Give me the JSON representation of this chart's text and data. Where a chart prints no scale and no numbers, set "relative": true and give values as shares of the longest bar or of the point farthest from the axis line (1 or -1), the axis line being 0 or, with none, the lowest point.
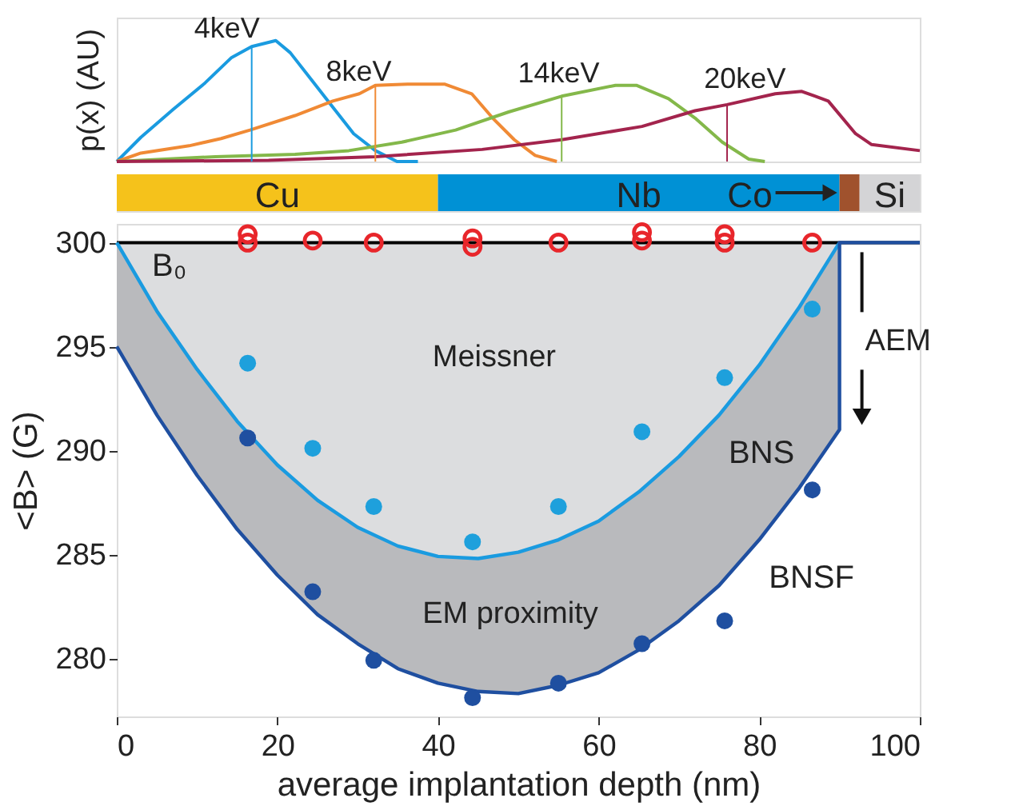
{
  "chart_data": [
    {
      "type": "line",
      "relative": true,
      "ylabel": "p(x) (AU)",
      "xlim": [
        0,
        100
      ],
      "ylim": [
        0,
        1.19
      ],
      "tick_labels": false,
      "legend": false,
      "grid": false,
      "marker": "none",
      "line_style": "solid",
      "series": [
        {
          "name": "4keV",
          "color": "#1a9be0",
          "x": [
            0,
            3,
            7,
            11,
            14.3,
            16.8,
            19.8,
            21.6,
            24.2,
            26.9,
            29.5,
            32.2,
            34.9,
            37.5
          ],
          "values": [
            0,
            0.2,
            0.43,
            0.65,
            0.86,
            0.95,
            1,
            0.9,
            0.68,
            0.45,
            0.23,
            0.09,
            0,
            0
          ]
        },
        {
          "name": "8keV",
          "color": "#f08a35",
          "x": [
            0,
            3,
            9,
            13,
            16.6,
            22.2,
            26.9,
            30.2,
            32.2,
            36.2,
            40.8,
            44.2,
            46.8,
            49.5,
            52.1,
            54.8
          ],
          "values": [
            0,
            0.07,
            0.13,
            0.19,
            0.26,
            0.38,
            0.5,
            0.56,
            0.63,
            0.64,
            0.64,
            0.56,
            0.36,
            0.18,
            0.05,
            0
          ]
        },
        {
          "name": "14keV",
          "color": "#84b84a",
          "x": [
            0,
            12.3,
            22.2,
            28.9,
            35.5,
            42.2,
            48.8,
            55.4,
            62.1,
            64.7,
            68.7,
            72,
            75.4,
            78.7,
            80.7
          ],
          "values": [
            0,
            0.04,
            0.06,
            0.09,
            0.16,
            0.26,
            0.41,
            0.54,
            0.63,
            0.63,
            0.52,
            0.36,
            0.16,
            0.02,
            0
          ]
        },
        {
          "name": "20keV",
          "color": "#a3244d",
          "x": [
            0,
            18.9,
            32.2,
            45.5,
            55.4,
            65.4,
            72,
            76,
            82,
            85.3,
            88.6,
            92,
            94,
            100
          ],
          "values": [
            0,
            0.01,
            0.04,
            0.1,
            0.18,
            0.29,
            0.42,
            0.47,
            0.56,
            0.58,
            0.5,
            0.23,
            0.14,
            0.09
          ]
        }
      ],
      "ref_lines": [
        {
          "axis": "x",
          "value": 16.8,
          "label": null,
          "color": "#1a9be0"
        },
        {
          "axis": "x",
          "value": 32.2,
          "label": null,
          "color": "#f08a35"
        },
        {
          "axis": "x",
          "value": 55.4,
          "label": null,
          "color": "#84b84a"
        },
        {
          "axis": "x",
          "value": 76,
          "label": null,
          "color": "#a3244d"
        }
      ]
    },
    {
      "type": "bar",
      "orientation": "horizontal",
      "stacked": true,
      "relative": true,
      "categories": [
        null
      ],
      "series": [
        {
          "name": "Cu",
          "color": "#f5c21b",
          "values": [
            0.4
          ]
        },
        {
          "name": "Nb",
          "color": "#0091d5",
          "values": [
            0.5
          ]
        },
        {
          "name": "Co",
          "color": "#a0522d",
          "values": [
            0.025
          ]
        },
        {
          "name": "Si",
          "color": "#d4d4d6",
          "values": [
            0.075
          ]
        }
      ]
    },
    {
      "type": "line",
      "xlabel": "average implantation depth (nm)",
      "ylabel": "<B> (G)",
      "xlim": [
        0,
        100
      ],
      "ylim": [
        277.2,
        300.9
      ],
      "xticks": [
        0,
        20,
        40,
        60,
        80,
        100
      ],
      "yticks": [
        280,
        285,
        290,
        295,
        300
      ],
      "grid": false,
      "series": [
        {
          "name": "BNS",
          "type": "line",
          "color": "#1a9be0",
          "x": [
            0,
            5,
            10,
            15,
            20,
            25,
            30,
            35,
            40,
            45,
            50,
            55,
            60,
            65,
            70,
            75,
            80,
            85,
            90
          ],
          "values": [
            300,
            296.7,
            293.9,
            291.4,
            289.3,
            287.6,
            286.3,
            285.4,
            284.9,
            284.8,
            285.1,
            285.7,
            286.6,
            288,
            289.7,
            291.7,
            294.1,
            296.9,
            300
          ]
        },
        {
          "name": "BNSF",
          "type": "line",
          "color": "#1f4fa0",
          "x": [
            0,
            5,
            10,
            15,
            20,
            25,
            30,
            35,
            40,
            45,
            50,
            55,
            60,
            65,
            70,
            75,
            80,
            85,
            90,
            90,
            100
          ],
          "values": [
            295,
            291.7,
            288.8,
            286.2,
            284,
            282.1,
            280.7,
            279.5,
            278.8,
            278.4,
            278.3,
            278.7,
            279.3,
            280.4,
            281.8,
            283.5,
            285.7,
            288.2,
            291,
            300,
            300
          ]
        },
        {
          "type": "scatter",
          "marker": "circle",
          "color": "#e8262b",
          "x": [
            16.3,
            16.3,
            24.4,
            32,
            44.3,
            44.3,
            55,
            65.4,
            65.4,
            75.7,
            75.7,
            86.6
          ],
          "values": [
            300.4,
            300,
            300.1,
            300,
            300.2,
            299.8,
            300,
            300.5,
            300.1,
            300.4,
            300,
            300
          ]
        },
        {
          "type": "scatter",
          "marker": "circle",
          "color": "#1ea0dc",
          "x": [
            16.3,
            24.4,
            32,
            44.3,
            55,
            65.4,
            75.7,
            86.6
          ],
          "values": [
            294.2,
            290.1,
            287.3,
            285.6,
            287.3,
            290.9,
            293.5,
            296.8
          ]
        },
        {
          "type": "scatter",
          "marker": "circle",
          "color": "#1f4fa0",
          "x": [
            16.3,
            24.4,
            32,
            44.3,
            55,
            65.4,
            75.7,
            86.6
          ],
          "values": [
            290.6,
            283.2,
            279.9,
            278.1,
            278.8,
            280.7,
            281.8,
            288.1
          ]
        }
      ],
      "ref_lines": [
        {
          "axis": "y",
          "value": 300,
          "label": "B₀",
          "color": "#000000"
        }
      ],
      "annotations": [
        "Meissner",
        "EM proximity",
        {
          "text": "AEM",
          "x": 90,
          "y": 291
        }
      ]
    }
  ]
}
